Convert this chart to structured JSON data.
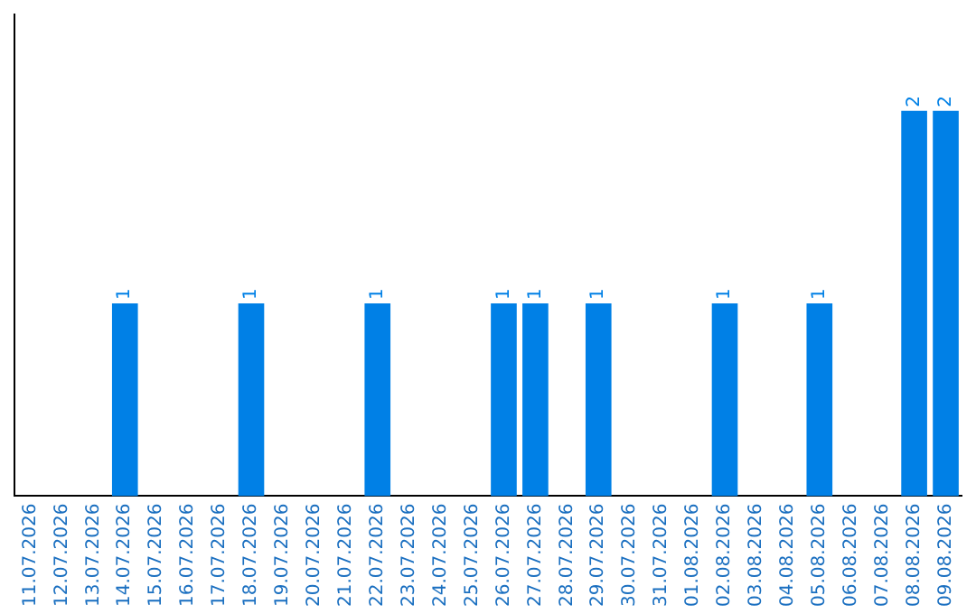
{
  "chart_data": {
    "type": "bar",
    "categories": [
      "11.07.2026",
      "12.07.2026",
      "13.07.2026",
      "14.07.2026",
      "15.07.2026",
      "16.07.2026",
      "17.07.2026",
      "18.07.2026",
      "19.07.2026",
      "20.07.2026",
      "21.07.2026",
      "22.07.2026",
      "23.07.2026",
      "24.07.2026",
      "25.07.2026",
      "26.07.2026",
      "27.07.2026",
      "28.07.2026",
      "29.07.2026",
      "30.07.2026",
      "31.07.2026",
      "01.08.2026",
      "02.08.2026",
      "03.08.2026",
      "04.08.2026",
      "05.08.2026",
      "06.08.2026",
      "07.08.2026",
      "08.08.2026",
      "09.08.2026"
    ],
    "values": [
      0,
      0,
      0,
      1,
      0,
      0,
      0,
      1,
      0,
      0,
      0,
      1,
      0,
      0,
      0,
      1,
      1,
      0,
      1,
      0,
      0,
      0,
      1,
      0,
      0,
      1,
      0,
      0,
      2,
      2
    ],
    "value_labels": [
      null,
      null,
      null,
      "1",
      null,
      null,
      null,
      "1",
      null,
      null,
      null,
      "1",
      null,
      null,
      null,
      "1",
      "1",
      null,
      "1",
      null,
      null,
      null,
      "1",
      null,
      null,
      "1",
      null,
      null,
      "2",
      "2"
    ],
    "color": "#0080e6",
    "grid": false,
    "legend": false,
    "tick_labels": "x"
  }
}
